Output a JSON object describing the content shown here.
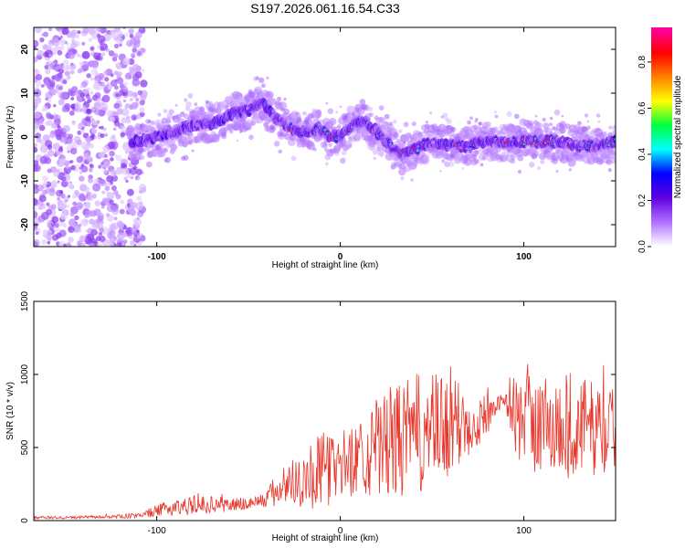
{
  "chart_data": [
    {
      "type": "heatmap",
      "title": "S197.2026.061.16.54.C33",
      "xlabel": "Height of straight line (km)",
      "ylabel": "Frequency (Hz)",
      "xlim": [
        -167,
        150
      ],
      "ylim": [
        -25,
        25
      ],
      "xticks": [
        -100,
        0,
        100
      ],
      "xtick_labels": [
        "-100",
        "0",
        "100"
      ],
      "yticks": [
        20,
        10,
        0,
        -10,
        -20
      ],
      "ytick_labels": [
        "20",
        "10",
        "0",
        "-10",
        "-20"
      ],
      "colorbar": {
        "label": "Normalized spectral amplitude",
        "range": [
          0.0,
          0.95
        ],
        "ticks": [
          0.0,
          0.2,
          0.4,
          0.6,
          0.8
        ],
        "tick_labels": [
          "0.0",
          "0.2",
          "0.4",
          "0.6",
          "0.8"
        ],
        "colors": [
          "#ffffff",
          "#b070ff",
          "#6000e0",
          "#0000ff",
          "#00ffff",
          "#00ff40",
          "#ffff00",
          "#ff8000",
          "#ff0000",
          "#ff00a0"
        ]
      },
      "ridge": {
        "x": [
          -108,
          -100,
          -90,
          -80,
          -70,
          -60,
          -50,
          -42,
          -35,
          -28,
          -20,
          -12,
          -5,
          0,
          5,
          12,
          18,
          25,
          32,
          40,
          50,
          60,
          70,
          80,
          90,
          100,
          110,
          120,
          130,
          140,
          148
        ],
        "y": [
          -1,
          0,
          1,
          3,
          3,
          5,
          6,
          8,
          4,
          2,
          1,
          2,
          0,
          0,
          2,
          4,
          2,
          -1,
          -4,
          -3,
          -1,
          -2,
          -2,
          -1,
          -1,
          -1,
          -1,
          -1,
          -2,
          -2,
          -1
        ]
      }
    },
    {
      "type": "line",
      "title": "",
      "xlabel": "Height of straight line (km)",
      "ylabel": "SNR (10 * v/v)",
      "xlim": [
        -167,
        150
      ],
      "ylim": [
        0,
        1500
      ],
      "xticks": [
        -100,
        0,
        100
      ],
      "xtick_labels": [
        "-100",
        "0",
        "100"
      ],
      "yticks": [
        0,
        500,
        1000,
        1500
      ],
      "ytick_labels": [
        "0",
        "500",
        "1000",
        "1500"
      ],
      "line_color": "#e8352a",
      "series": [
        {
          "name": "SNR",
          "x": [
            -167,
            -150,
            -130,
            -115,
            -105,
            -95,
            -85,
            -75,
            -65,
            -55,
            -45,
            -40,
            -35,
            -30,
            -25,
            -20,
            -15,
            -10,
            -5,
            0,
            5,
            10,
            15,
            20,
            25,
            30,
            35,
            40,
            45,
            50,
            55,
            60,
            65,
            70,
            75,
            80,
            85,
            90,
            95,
            100,
            105,
            110,
            115,
            120,
            125,
            130,
            135,
            140,
            145,
            150
          ],
          "mean": [
            20,
            20,
            25,
            30,
            50,
            80,
            100,
            110,
            110,
            110,
            130,
            150,
            200,
            250,
            270,
            290,
            320,
            340,
            360,
            380,
            400,
            440,
            470,
            500,
            520,
            540,
            560,
            580,
            600,
            610,
            620,
            640,
            650,
            680,
            700,
            720,
            800,
            820,
            720,
            680,
            670,
            660,
            650,
            640,
            650,
            650,
            640,
            630,
            620,
            610
          ],
          "amp": [
            10,
            10,
            10,
            15,
            30,
            50,
            60,
            60,
            55,
            50,
            50,
            60,
            130,
            150,
            170,
            200,
            250,
            260,
            250,
            240,
            240,
            260,
            300,
            350,
            380,
            400,
            400,
            420,
            420,
            400,
            380,
            380,
            300,
            250,
            200,
            150,
            60,
            40,
            300,
            330,
            350,
            350,
            350,
            400,
            380,
            350,
            330,
            320,
            310,
            300
          ]
        }
      ]
    }
  ]
}
